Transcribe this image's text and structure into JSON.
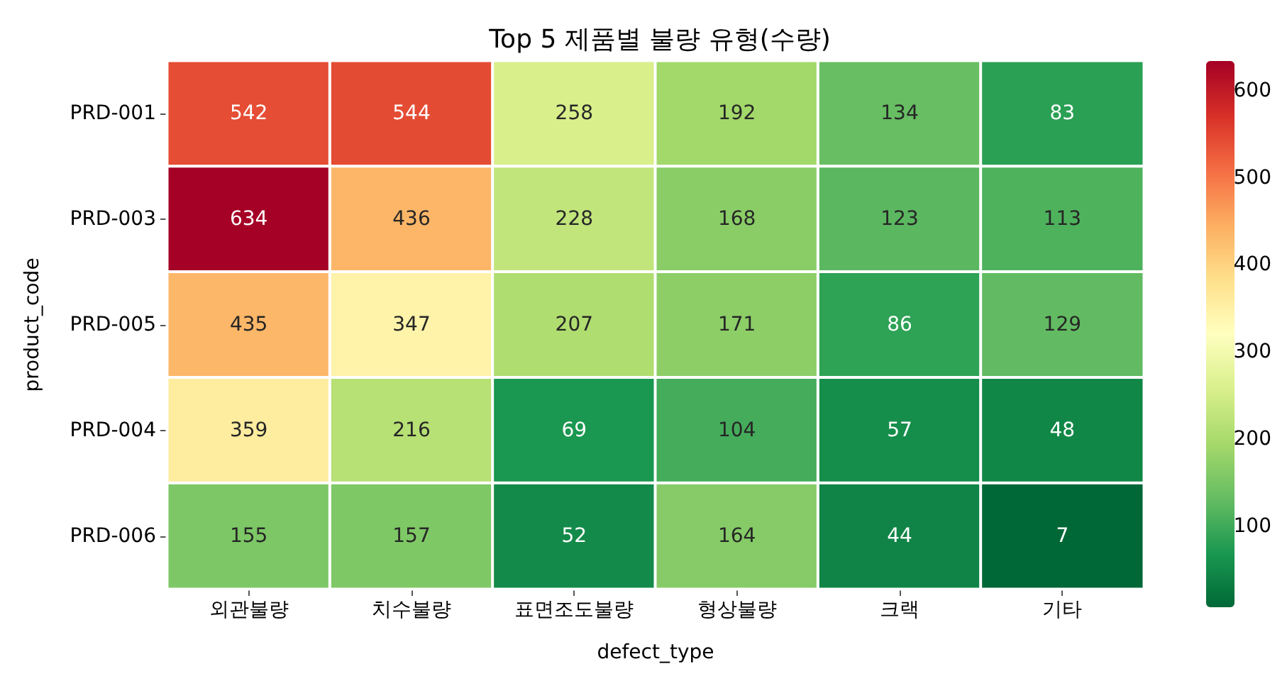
{
  "chart_data": {
    "type": "heatmap",
    "title": "Top 5 제품별 불량 유형(수량)",
    "xlabel": "defect_type",
    "ylabel": "product_code",
    "categories": [
      "외관불량",
      "치수불량",
      "표면조도불량",
      "형상불량",
      "크랙",
      "기타"
    ],
    "y_categories": [
      "PRD-001",
      "PRD-003",
      "PRD-005",
      "PRD-004",
      "PRD-006"
    ],
    "cells": [
      [
        542,
        544,
        258,
        192,
        134,
        83
      ],
      [
        634,
        436,
        228,
        168,
        123,
        113
      ],
      [
        435,
        347,
        207,
        171,
        86,
        129
      ],
      [
        359,
        216,
        69,
        104,
        57,
        48
      ],
      [
        155,
        157,
        52,
        164,
        44,
        7
      ]
    ],
    "data_labels": true,
    "clim": [
      7,
      634
    ],
    "cticks": [
      100,
      200,
      300,
      400,
      500,
      600
    ]
  }
}
